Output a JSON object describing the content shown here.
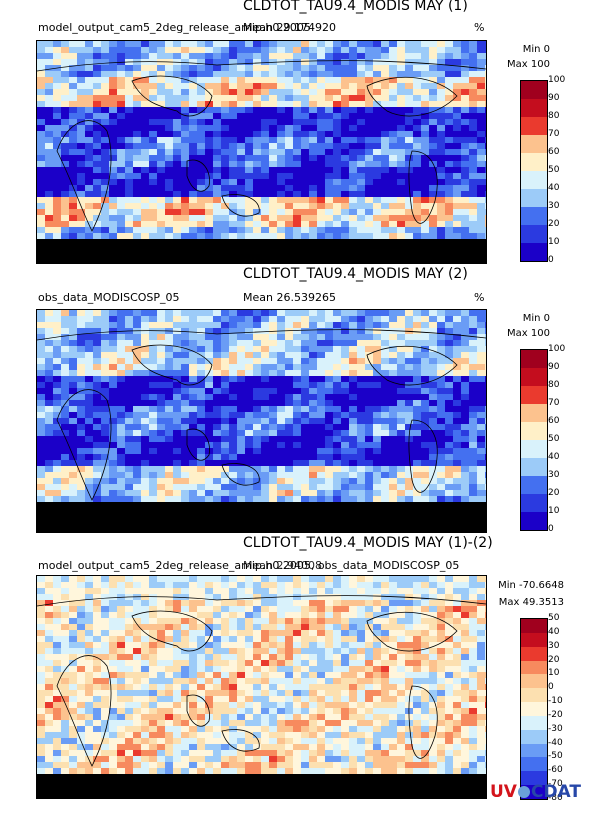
{
  "panels": [
    {
      "title": "CLDTOT_TAU9.4_MODIS MAY (1)",
      "subtitle": "model_output_cam5_2deg_release_amip.h0.2005",
      "mean": "Mean 29.174920",
      "units": "%",
      "min": "Min 0",
      "max": "Max 100",
      "ticks": [
        "100",
        "90",
        "80",
        "70",
        "60",
        "50",
        "40",
        "30",
        "20",
        "10",
        "0"
      ]
    },
    {
      "title": "CLDTOT_TAU9.4_MODIS MAY (2)",
      "subtitle": "obs_data_MODISCOSP_05",
      "mean": "Mean 26.539265",
      "units": "%",
      "min": "Min 0",
      "max": "Max 100",
      "ticks": [
        "100",
        "90",
        "80",
        "70",
        "60",
        "50",
        "40",
        "30",
        "20",
        "10",
        "0"
      ]
    },
    {
      "title": "CLDTOT_TAU9.4_MODIS MAY (1)-(2)",
      "subtitle": "model_output_cam5_2deg_release_amip.h0.2005, obs_data_MODISCOSP_05",
      "mean": "Mean 2.94008",
      "units": "",
      "min": "Min -70.6648",
      "max": "Max 49.3513",
      "ticks": [
        "50",
        "40",
        "30",
        "20",
        "10",
        "0",
        "-10",
        "-20",
        "-30",
        "-40",
        "-50",
        "-60",
        "-70",
        "-80"
      ]
    }
  ],
  "logo": {
    "uv": "UV",
    "cdat": "CDAT"
  },
  "colors": {
    "seq": [
      "#1b00c8",
      "#2b3ae0",
      "#4470f0",
      "#6a9cf5",
      "#9ccbf8",
      "#d9f2fb",
      "#fff0c8",
      "#fcc28e",
      "#f78a5e",
      "#ea3a2e",
      "#c40d1e",
      "#a0001e"
    ],
    "div": [
      "#1b00c8",
      "#2b3ae0",
      "#4470f0",
      "#6a9cf5",
      "#9ccbf8",
      "#d9f2fb",
      "#fff6dc",
      "#fce0b0",
      "#fcc28e",
      "#f78a5e",
      "#ea3a2e",
      "#c40d1e",
      "#a0001e"
    ]
  },
  "chart_data": [
    {
      "type": "heatmap",
      "title": "CLDTOT_TAU9.4_MODIS MAY (1)",
      "colorbar_levels": [
        0,
        10,
        20,
        30,
        40,
        50,
        60,
        70,
        80,
        90,
        100
      ],
      "x_range": [
        0,
        360
      ],
      "y_range": [
        -90,
        90
      ],
      "mean": 29.17492,
      "min": 0,
      "max": 100,
      "units": "%"
    },
    {
      "type": "heatmap",
      "title": "CLDTOT_TAU9.4_MODIS MAY (2)",
      "colorbar_levels": [
        0,
        10,
        20,
        30,
        40,
        50,
        60,
        70,
        80,
        90,
        100
      ],
      "x_range": [
        0,
        360
      ],
      "y_range": [
        -90,
        90
      ],
      "mean": 26.539265,
      "min": 0,
      "max": 100,
      "units": "%"
    },
    {
      "type": "heatmap",
      "title": "CLDTOT_TAU9.4_MODIS MAY (1)-(2)",
      "colorbar_levels": [
        -80,
        -70,
        -60,
        -50,
        -40,
        -30,
        -20,
        -10,
        0,
        10,
        20,
        30,
        40,
        50
      ],
      "x_range": [
        0,
        360
      ],
      "y_range": [
        -90,
        90
      ],
      "mean": 2.94008,
      "min": -70.6648,
      "max": 49.3513
    }
  ]
}
